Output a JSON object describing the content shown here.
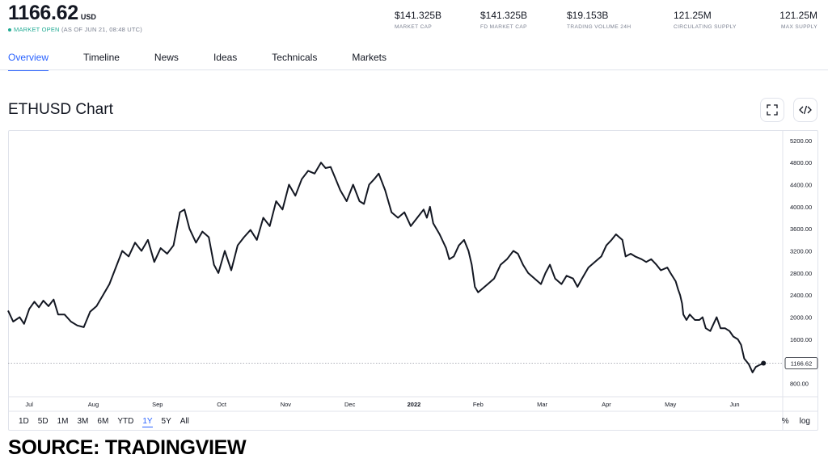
{
  "header": {
    "price": "1166.62",
    "currency": "USD",
    "market_status": "MARKET OPEN",
    "as_of": "(AS OF JUN 21, 08:48 UTC)",
    "stats": [
      {
        "value": "$141.325B",
        "label": "MARKET CAP"
      },
      {
        "value": "$141.325B",
        "label": "FD MARKET CAP"
      },
      {
        "value": "$19.153B",
        "label": "TRADING VOLUME 24H"
      },
      {
        "value": "121.25M",
        "label": "CIRCULATING SUPPLY"
      },
      {
        "value": "121.25M",
        "label": "MAX SUPPLY"
      }
    ]
  },
  "tabs": [
    {
      "label": "Overview",
      "active": true
    },
    {
      "label": "Timeline",
      "active": false
    },
    {
      "label": "News",
      "active": false
    },
    {
      "label": "Ideas",
      "active": false
    },
    {
      "label": "Technicals",
      "active": false
    },
    {
      "label": "Markets",
      "active": false
    }
  ],
  "chart_section": {
    "title": "ETHUSD Chart",
    "fullscreen_icon": "fullscreen-icon",
    "embed_icon": "code-embed-icon",
    "ranges": [
      {
        "label": "1D",
        "active": false
      },
      {
        "label": "5D",
        "active": false
      },
      {
        "label": "1M",
        "active": false
      },
      {
        "label": "3M",
        "active": false
      },
      {
        "label": "6M",
        "active": false
      },
      {
        "label": "YTD",
        "active": false
      },
      {
        "label": "1Y",
        "active": true
      },
      {
        "label": "5Y",
        "active": false
      },
      {
        "label": "All",
        "active": false
      }
    ],
    "scale_options": [
      "%",
      "log"
    ]
  },
  "source_caption": "SOURCE: TRADINGVIEW",
  "colors": {
    "accent": "#2962ff",
    "market_open": "#22ab94",
    "line": "#131722"
  },
  "chart_data": {
    "type": "line",
    "title": "",
    "xlabel": "",
    "ylabel": "",
    "x_tick_labels": [
      "Jul",
      "Aug",
      "Sep",
      "Oct",
      "Nov",
      "Dec",
      "2022",
      "Feb",
      "Mar",
      "Apr",
      "May",
      "Jun"
    ],
    "x_tick_months": [
      0,
      1,
      2,
      3,
      4,
      5,
      6,
      7,
      8,
      9,
      10,
      11
    ],
    "x_unit": "months since Jul 2021",
    "y_tick_labels": [
      "800.00",
      "1200.00",
      "1600.00",
      "2000.00",
      "2400.00",
      "2800.00",
      "3200.00",
      "3600.00",
      "4000.00",
      "4400.00",
      "4800.00",
      "5200.00"
    ],
    "y_ticks": [
      800,
      1200,
      1600,
      2000,
      2400,
      2800,
      3200,
      3600,
      4000,
      4400,
      4800,
      5200
    ],
    "ylim": [
      560,
      5300
    ],
    "xlim": [
      -0.33,
      11.75
    ],
    "grid": false,
    "last_value": 1166.62,
    "last_value_label": "1166.62",
    "series": [
      {
        "name": "ETHUSD",
        "points": [
          [
            -0.33,
            2120
          ],
          [
            -0.25,
            1920
          ],
          [
            -0.15,
            2000
          ],
          [
            -0.08,
            1880
          ],
          [
            0.0,
            2150
          ],
          [
            0.08,
            2280
          ],
          [
            0.15,
            2180
          ],
          [
            0.22,
            2300
          ],
          [
            0.3,
            2200
          ],
          [
            0.38,
            2320
          ],
          [
            0.45,
            2050
          ],
          [
            0.55,
            2050
          ],
          [
            0.65,
            1920
          ],
          [
            0.75,
            1850
          ],
          [
            0.85,
            1820
          ],
          [
            0.95,
            2100
          ],
          [
            1.05,
            2200
          ],
          [
            1.15,
            2400
          ],
          [
            1.25,
            2600
          ],
          [
            1.35,
            2900
          ],
          [
            1.45,
            3200
          ],
          [
            1.55,
            3100
          ],
          [
            1.65,
            3350
          ],
          [
            1.75,
            3200
          ],
          [
            1.85,
            3400
          ],
          [
            1.95,
            3000
          ],
          [
            2.05,
            3250
          ],
          [
            2.15,
            3150
          ],
          [
            2.25,
            3300
          ],
          [
            2.35,
            3900
          ],
          [
            2.42,
            3950
          ],
          [
            2.5,
            3600
          ],
          [
            2.6,
            3350
          ],
          [
            2.7,
            3550
          ],
          [
            2.8,
            3450
          ],
          [
            2.88,
            2950
          ],
          [
            2.95,
            2800
          ],
          [
            3.05,
            3200
          ],
          [
            3.15,
            2850
          ],
          [
            3.25,
            3300
          ],
          [
            3.35,
            3450
          ],
          [
            3.45,
            3580
          ],
          [
            3.55,
            3400
          ],
          [
            3.65,
            3800
          ],
          [
            3.75,
            3650
          ],
          [
            3.85,
            4100
          ],
          [
            3.95,
            3950
          ],
          [
            4.05,
            4400
          ],
          [
            4.15,
            4200
          ],
          [
            4.25,
            4500
          ],
          [
            4.35,
            4650
          ],
          [
            4.45,
            4600
          ],
          [
            4.55,
            4800
          ],
          [
            4.62,
            4700
          ],
          [
            4.7,
            4720
          ],
          [
            4.78,
            4500
          ],
          [
            4.85,
            4300
          ],
          [
            4.95,
            4100
          ],
          [
            5.05,
            4400
          ],
          [
            5.15,
            4100
          ],
          [
            5.22,
            4050
          ],
          [
            5.3,
            4400
          ],
          [
            5.38,
            4500
          ],
          [
            5.45,
            4600
          ],
          [
            5.55,
            4300
          ],
          [
            5.65,
            3900
          ],
          [
            5.75,
            3800
          ],
          [
            5.85,
            3900
          ],
          [
            5.95,
            3650
          ],
          [
            6.05,
            3800
          ],
          [
            6.15,
            3950
          ],
          [
            6.2,
            3800
          ],
          [
            6.25,
            4000
          ],
          [
            6.3,
            3700
          ],
          [
            6.4,
            3500
          ],
          [
            6.5,
            3250
          ],
          [
            6.55,
            3050
          ],
          [
            6.62,
            3100
          ],
          [
            6.7,
            3300
          ],
          [
            6.78,
            3400
          ],
          [
            6.85,
            3200
          ],
          [
            6.9,
            2950
          ],
          [
            6.95,
            2550
          ],
          [
            7.0,
            2450
          ],
          [
            7.05,
            2500
          ],
          [
            7.15,
            2600
          ],
          [
            7.25,
            2700
          ],
          [
            7.35,
            2950
          ],
          [
            7.45,
            3050
          ],
          [
            7.55,
            3200
          ],
          [
            7.62,
            3150
          ],
          [
            7.7,
            2950
          ],
          [
            7.78,
            2800
          ],
          [
            7.88,
            2700
          ],
          [
            7.98,
            2600
          ],
          [
            8.05,
            2800
          ],
          [
            8.12,
            2950
          ],
          [
            8.2,
            2700
          ],
          [
            8.3,
            2600
          ],
          [
            8.38,
            2750
          ],
          [
            8.48,
            2700
          ],
          [
            8.55,
            2550
          ],
          [
            8.62,
            2700
          ],
          [
            8.72,
            2900
          ],
          [
            8.82,
            3000
          ],
          [
            8.92,
            3100
          ],
          [
            9.0,
            3300
          ],
          [
            9.08,
            3400
          ],
          [
            9.15,
            3500
          ],
          [
            9.2,
            3450
          ],
          [
            9.25,
            3400
          ],
          [
            9.3,
            3100
          ],
          [
            9.38,
            3150
          ],
          [
            9.45,
            3100
          ],
          [
            9.55,
            3050
          ],
          [
            9.62,
            3000
          ],
          [
            9.7,
            3050
          ],
          [
            9.78,
            2950
          ],
          [
            9.85,
            2850
          ],
          [
            9.95,
            2900
          ],
          [
            10.0,
            2800
          ],
          [
            10.08,
            2650
          ],
          [
            10.12,
            2500
          ],
          [
            10.15,
            2400
          ],
          [
            10.18,
            2250
          ],
          [
            10.2,
            2050
          ],
          [
            10.25,
            1950
          ],
          [
            10.3,
            2050
          ],
          [
            10.38,
            1950
          ],
          [
            10.45,
            1950
          ],
          [
            10.5,
            2000
          ],
          [
            10.55,
            1800
          ],
          [
            10.62,
            1750
          ],
          [
            10.68,
            1900
          ],
          [
            10.72,
            2000
          ],
          [
            10.78,
            1800
          ],
          [
            10.85,
            1800
          ],
          [
            10.92,
            1750
          ],
          [
            10.98,
            1650
          ],
          [
            11.05,
            1600
          ],
          [
            11.1,
            1500
          ],
          [
            11.15,
            1250
          ],
          [
            11.22,
            1150
          ],
          [
            11.28,
            1000
          ],
          [
            11.33,
            1100
          ],
          [
            11.38,
            1130
          ],
          [
            11.45,
            1166.62
          ]
        ]
      }
    ]
  }
}
